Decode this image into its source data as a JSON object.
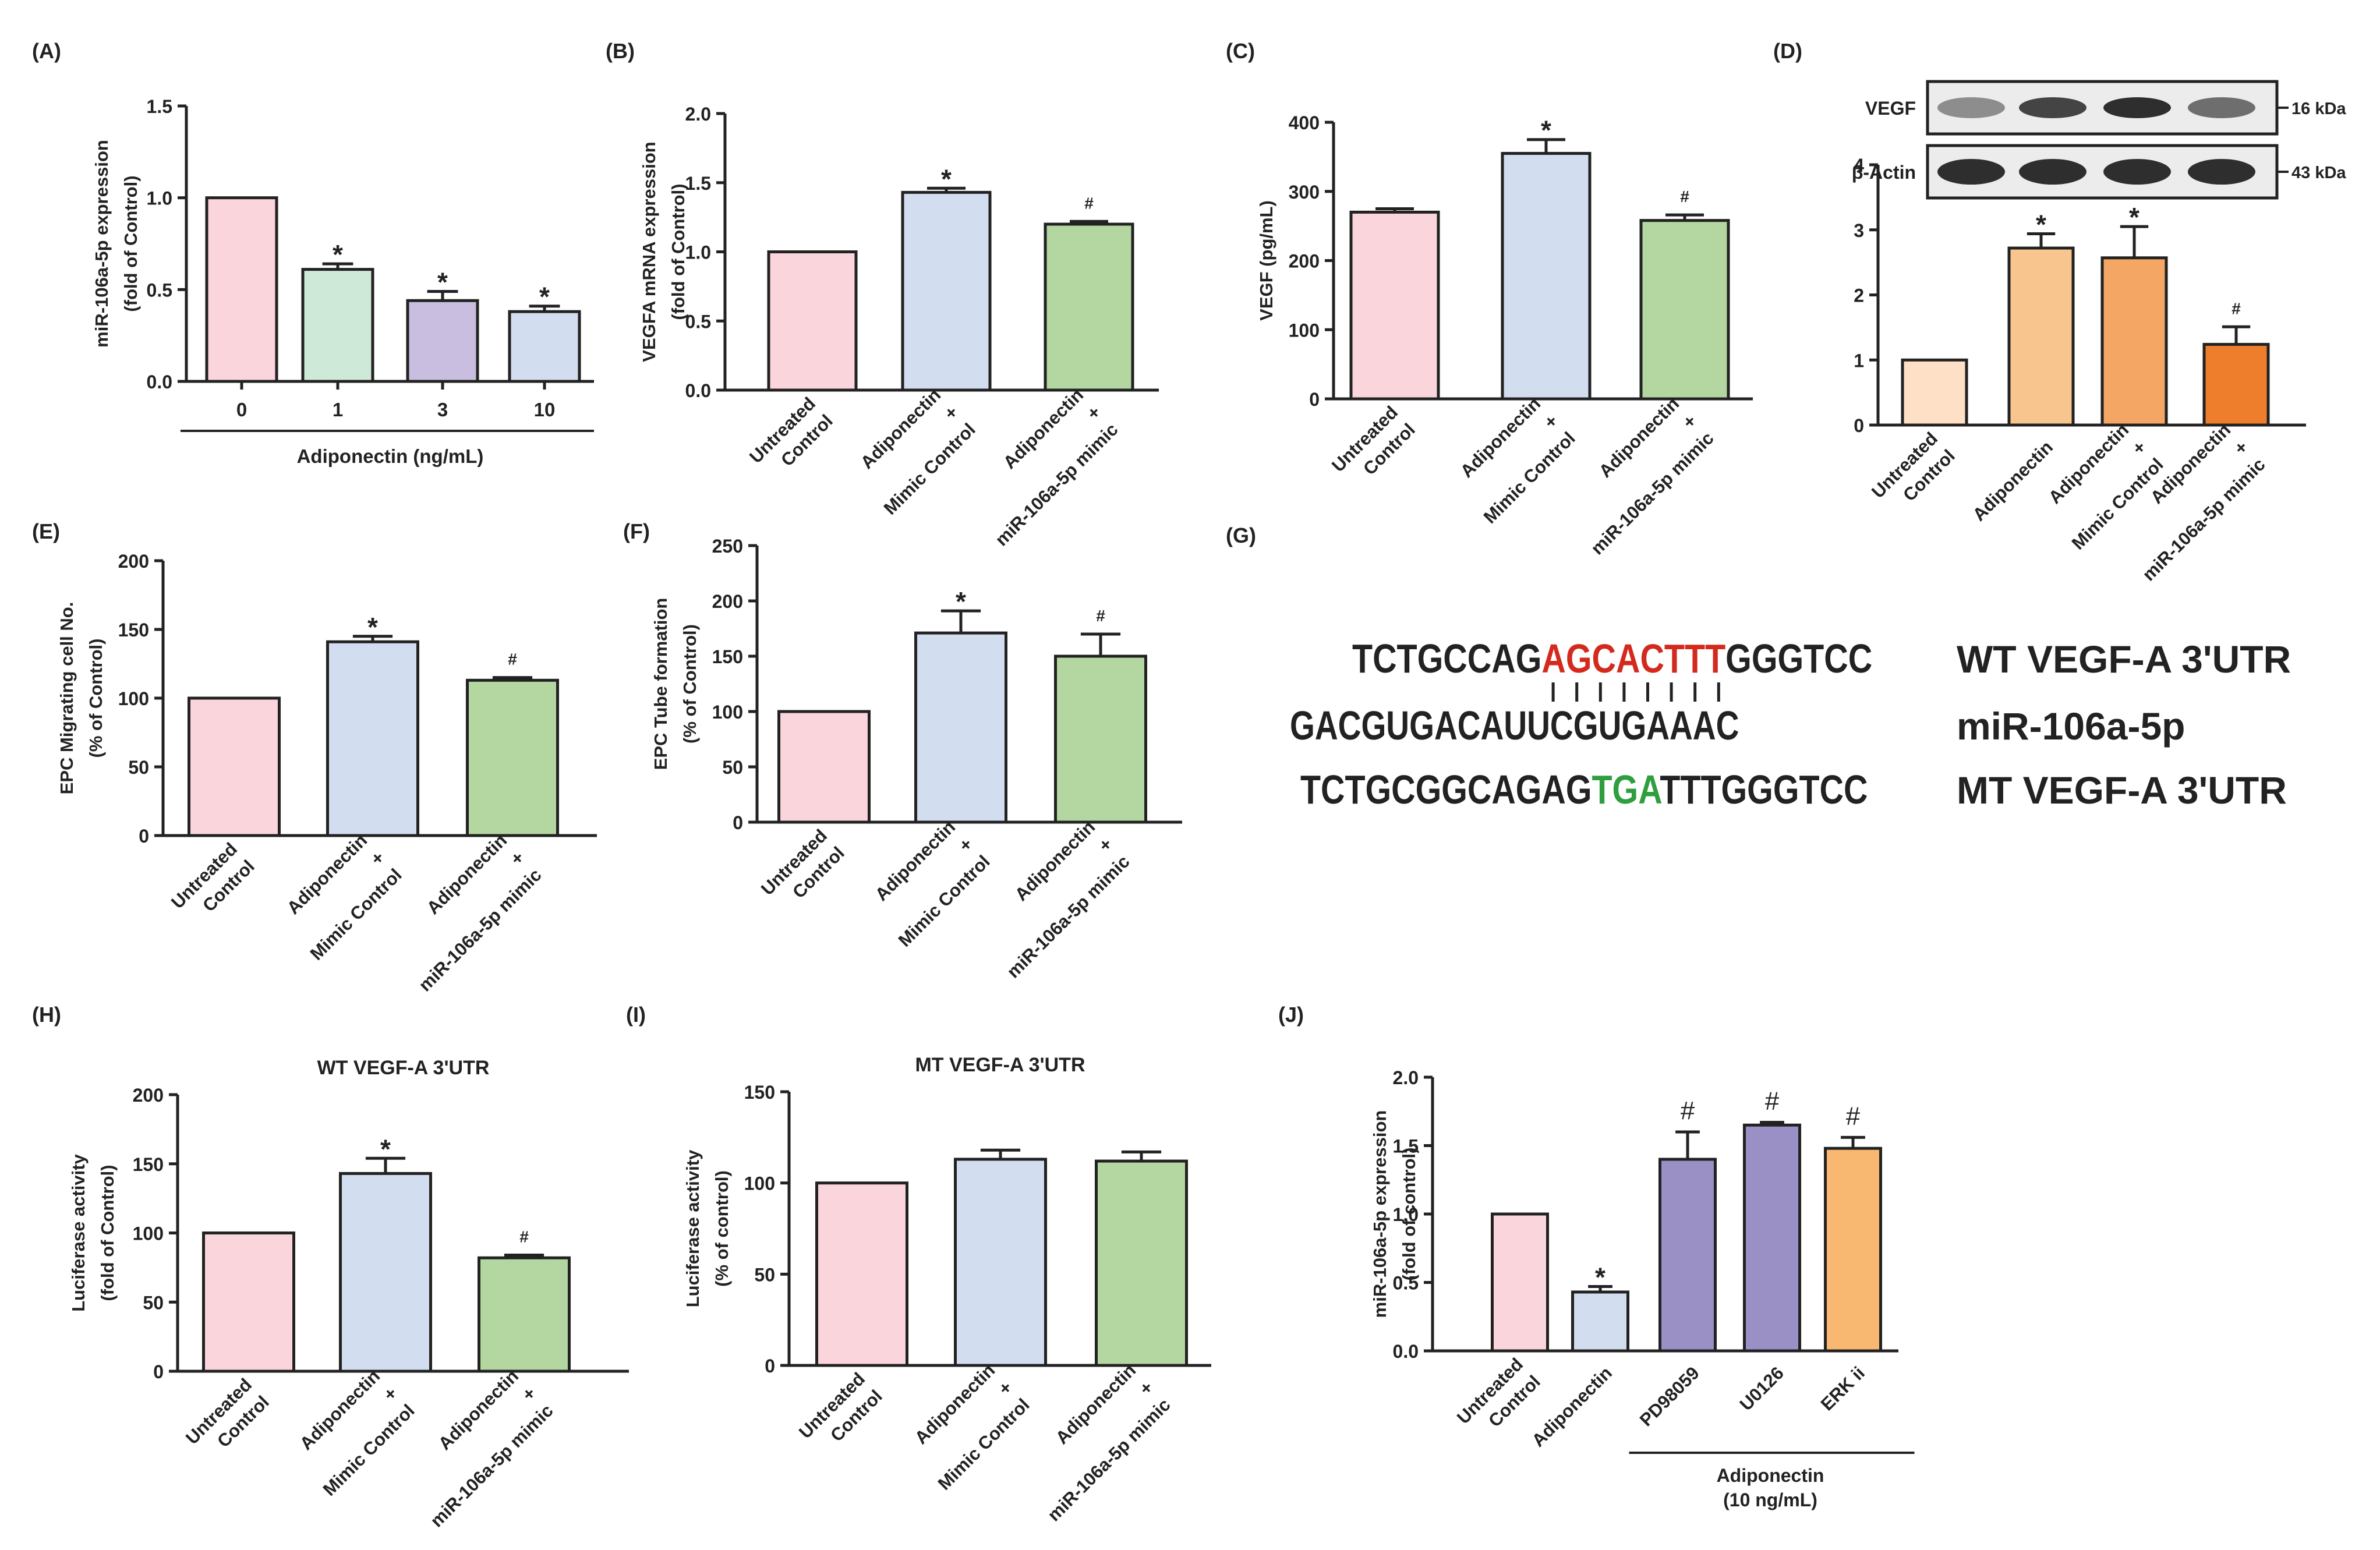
{
  "chart_data": [
    {
      "id": "A",
      "panel_label": "(A)",
      "type": "bar",
      "title": "",
      "ylabel_lines": [
        "miR-106a-5p expression",
        "(fold of Control)"
      ],
      "ylim": [
        0,
        1.5
      ],
      "yticks": [
        0.0,
        0.5,
        1.0,
        1.5
      ],
      "ytick_labels": [
        "0.0",
        "0.5",
        "1.0",
        "1.5"
      ],
      "categories": [
        "0",
        "1",
        "3",
        "10"
      ],
      "values": [
        1.0,
        0.61,
        0.44,
        0.38
      ],
      "errors": [
        0,
        0.03,
        0.05,
        0.03
      ],
      "colors": [
        "#fbd5dc",
        "#cfe9d9",
        "#c9bedf",
        "#d2ddf0"
      ],
      "annotations": [
        "",
        "*",
        "*",
        "*"
      ],
      "group_label": {
        "text": "Adiponectin (ng/mL)",
        "from": 0,
        "to": 3
      }
    },
    {
      "id": "B",
      "panel_label": "(B)",
      "type": "bar",
      "title": "",
      "ylabel_lines": [
        "VEGFA mRNA expression",
        "(fold of Control)"
      ],
      "ylim": [
        0,
        2.0
      ],
      "yticks": [
        0.0,
        0.5,
        1.0,
        1.5,
        2.0
      ],
      "ytick_labels": [
        "0.0",
        "0.5",
        "1.0",
        "1.5",
        "2.0"
      ],
      "categories": [
        [
          "Untreated",
          "Control"
        ],
        [
          "Adiponectin",
          "+",
          "Mimic Control"
        ],
        [
          "Adiponectin",
          "+",
          "miR-106a-5p mimic"
        ]
      ],
      "values": [
        1.0,
        1.43,
        1.2
      ],
      "errors": [
        0,
        0.03,
        0.02
      ],
      "colors": [
        "#fbd5dc",
        "#d2ddf0",
        "#b4d6a0"
      ],
      "annotations": [
        "",
        "*",
        "#"
      ]
    },
    {
      "id": "C",
      "panel_label": "(C)",
      "type": "bar",
      "title": "",
      "ylabel_lines": [
        "VEGF (pg/mL)"
      ],
      "ylim": [
        0,
        400
      ],
      "yticks": [
        0,
        100,
        200,
        300,
        400
      ],
      "ytick_labels": [
        "0",
        "100",
        "200",
        "300",
        "400"
      ],
      "categories": [
        [
          "Untreated",
          "Control"
        ],
        [
          "Adiponectin",
          "+",
          "Mimic Control"
        ],
        [
          "Adiponectin",
          "+",
          "miR-106a-5p mimic"
        ]
      ],
      "values": [
        270,
        355,
        258
      ],
      "errors": [
        5,
        20,
        8
      ],
      "colors": [
        "#fbd5dc",
        "#d2ddf0",
        "#b4d6a0"
      ],
      "annotations": [
        "",
        "*",
        "#"
      ]
    },
    {
      "id": "D",
      "panel_label": "(D)",
      "type": "bar",
      "title": "",
      "ylabel_lines": [],
      "ylim": [
        0,
        4
      ],
      "yticks": [
        0,
        1,
        2,
        3,
        4
      ],
      "ytick_labels": [
        "0",
        "1",
        "2",
        "3",
        "4"
      ],
      "categories": [
        [
          "Untreated",
          "Control"
        ],
        [
          "Adiponectin"
        ],
        [
          "Adiponectin",
          "+",
          "Mimic Control"
        ],
        [
          "Adiponectin",
          "+",
          "miR-106a-5p mimic"
        ]
      ],
      "values": [
        1.0,
        2.72,
        2.57,
        1.24
      ],
      "errors": [
        0,
        0.22,
        0.48,
        0.27
      ],
      "colors": [
        "#fde0c5",
        "#f9c58f",
        "#f4a764",
        "#ee7d2c"
      ],
      "annotations": [
        "",
        "*",
        "*",
        "#"
      ],
      "blots": [
        {
          "label": "VEGF",
          "size": "16 kDa"
        },
        {
          "label": "β-Actin",
          "size": "43 kDa"
        }
      ]
    },
    {
      "id": "E",
      "panel_label": "(E)",
      "type": "bar",
      "title": "",
      "ylabel_lines": [
        "EPC Migrating cell No.",
        "(% of Control)"
      ],
      "ylim": [
        0,
        200
      ],
      "yticks": [
        0,
        50,
        100,
        150,
        200
      ],
      "ytick_labels": [
        "0",
        "50",
        "100",
        "150",
        "200"
      ],
      "categories": [
        [
          "Untreated",
          "Control"
        ],
        [
          "Adiponectin",
          "+",
          "Mimic Control"
        ],
        [
          "Adiponectin",
          "+",
          "miR-106a-5p mimic"
        ]
      ],
      "values": [
        100,
        141,
        113
      ],
      "errors": [
        0,
        4,
        2
      ],
      "colors": [
        "#fbd5dc",
        "#d2ddf0",
        "#b4d6a0"
      ],
      "annotations": [
        "",
        "*",
        "#"
      ]
    },
    {
      "id": "F",
      "panel_label": "(F)",
      "type": "bar",
      "title": "",
      "ylabel_lines": [
        "EPC Tube formation",
        "(% of Control)"
      ],
      "ylim": [
        0,
        250
      ],
      "yticks": [
        0,
        50,
        100,
        150,
        200,
        250
      ],
      "ytick_labels": [
        "0",
        "50",
        "100",
        "150",
        "200",
        "250"
      ],
      "categories": [
        [
          "Untreated",
          "Control"
        ],
        [
          "Adiponectin",
          "+",
          "Mimic Control"
        ],
        [
          "Adiponectin",
          "+",
          "miR-106a-5p mimic"
        ]
      ],
      "values": [
        100,
        171,
        150
      ],
      "errors": [
        0,
        20,
        20
      ],
      "colors": [
        "#fbd5dc",
        "#d2ddf0",
        "#b4d6a0"
      ],
      "annotations": [
        "",
        "*",
        "#"
      ]
    },
    {
      "id": "H",
      "panel_label": "(H)",
      "type": "bar",
      "title": "WT VEGF-A 3'UTR",
      "ylabel_lines": [
        "Luciferase activity",
        "(fold of Control)"
      ],
      "ylim": [
        0,
        200
      ],
      "yticks": [
        0,
        50,
        100,
        150,
        200
      ],
      "ytick_labels": [
        "0",
        "50",
        "100",
        "150",
        "200"
      ],
      "categories": [
        [
          "Untreated",
          "Control"
        ],
        [
          "Adiponectin",
          "+",
          "Mimic Control"
        ],
        [
          "Adiponectin",
          "+",
          "miR-106a-5p mimic"
        ]
      ],
      "values": [
        100,
        143,
        82
      ],
      "errors": [
        0,
        11,
        2
      ],
      "colors": [
        "#fbd5dc",
        "#d2ddf0",
        "#b4d6a0"
      ],
      "annotations": [
        "",
        "*",
        "#"
      ]
    },
    {
      "id": "I",
      "panel_label": "(I)",
      "type": "bar",
      "title": "MT VEGF-A 3'UTR",
      "ylabel_lines": [
        "Luciferase activity",
        "(% of control)"
      ],
      "ylim": [
        0,
        150
      ],
      "yticks": [
        0,
        50,
        100,
        150
      ],
      "ytick_labels": [
        "0",
        "50",
        "100",
        "150"
      ],
      "categories": [
        [
          "Untreated",
          "Control"
        ],
        [
          "Adiponectin",
          "+",
          "Mimic Control"
        ],
        [
          "Adiponectin",
          "+",
          "miR-106a-5p mimic"
        ]
      ],
      "values": [
        100,
        113,
        112
      ],
      "errors": [
        0,
        5,
        5
      ],
      "colors": [
        "#fbd5dc",
        "#d2ddf0",
        "#b4d6a0"
      ],
      "annotations": [
        "",
        "",
        ""
      ]
    },
    {
      "id": "J",
      "panel_label": "(J)",
      "type": "bar",
      "title": "",
      "ylabel_lines": [
        "miR-106a-5p expression",
        "(fold of control)"
      ],
      "ylim": [
        0,
        2.0
      ],
      "yticks": [
        0.0,
        0.5,
        1.0,
        1.5,
        2.0
      ],
      "ytick_labels": [
        "0.0",
        "0.5",
        "1.0",
        "1.5",
        "2.0"
      ],
      "categories": [
        [
          "Untreated",
          "Control"
        ],
        [
          "Adiponectin"
        ],
        [
          "PD98059"
        ],
        [
          "U0126"
        ],
        [
          "ERK ii"
        ]
      ],
      "values": [
        1.0,
        0.43,
        1.4,
        1.65,
        1.48
      ],
      "errors": [
        0,
        0.04,
        0.2,
        0.02,
        0.08
      ],
      "colors": [
        "#fbd5dc",
        "#d2ddf0",
        "#9a90c6",
        "#9a90c6",
        "#f9b872"
      ],
      "annotations": [
        "",
        "*",
        "#",
        "#",
        "#"
      ],
      "group_label": {
        "text_lines": [
          "Adiponectin",
          "(10 ng/mL)"
        ],
        "from": 2,
        "to": 4
      }
    }
  ],
  "panel_g": {
    "panel_label": "(G)",
    "rows": [
      {
        "segments": [
          {
            "t": "TCTGCCAG",
            "c": "#222222"
          },
          {
            "t": "AGCACTTT",
            "c": "#d42a1e"
          },
          {
            "t": "GGGTCC",
            "c": "#222222"
          }
        ],
        "label": "WT VEGF-A 3'UTR"
      },
      {
        "segments": [
          {
            "t": "GACGUGACAUUCGUGAAAC",
            "c": "#222222"
          }
        ],
        "label": "miR-106a-5p"
      },
      {
        "segments": [
          {
            "t": "TCTGCGGCAGAG",
            "c": "#222222"
          },
          {
            "t": "TGA",
            "c": "#2e9e3e"
          },
          {
            "t": "TTTGGGTCC",
            "c": "#222222"
          }
        ],
        "label": "MT VEGF-A 3'UTR"
      }
    ],
    "pairing_marks": 8
  }
}
